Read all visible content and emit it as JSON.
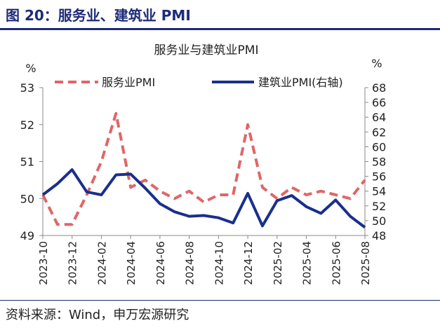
{
  "figure": {
    "title": "图 20：服务业、建筑业 PMI",
    "source": "资料来源：Wind，申万宏源研究"
  },
  "colors": {
    "header_blue": "#1d2b78",
    "services_line": "#e06666",
    "construction_line": "#1a2f8c"
  },
  "chart_data": {
    "type": "line",
    "title": "服务业与建筑业PMI",
    "left_unit": "%",
    "right_unit": "%",
    "x": [
      "2023-10",
      "2023-11",
      "2023-12",
      "2024-01",
      "2024-02",
      "2024-03",
      "2024-04",
      "2024-05",
      "2024-06",
      "2024-07",
      "2024-08",
      "2024-09",
      "2024-10",
      "2024-11",
      "2024-12",
      "2025-01",
      "2025-02",
      "2025-03",
      "2025-04",
      "2025-05",
      "2025-06",
      "2025-07",
      "2025-08"
    ],
    "x_tick_labels": [
      "2023-10",
      "2023-12",
      "2024-02",
      "2024-04",
      "2024-06",
      "2024-08",
      "2024-10",
      "2024-12",
      "2025-02",
      "2025-04",
      "2025-06",
      "2025-08"
    ],
    "y_left": {
      "lim": [
        49,
        53
      ],
      "ticks": [
        "49",
        "50",
        "51",
        "52",
        "53"
      ]
    },
    "y_right": {
      "lim": [
        48,
        68
      ],
      "ticks": [
        "48",
        "50",
        "52",
        "54",
        "56",
        "58",
        "60",
        "62",
        "64",
        "66",
        "68"
      ]
    },
    "series": [
      {
        "name": "服务业PMI",
        "axis": "left",
        "style": "dashed",
        "values": [
          50.1,
          49.3,
          49.3,
          50.1,
          51.0,
          52.3,
          50.3,
          50.5,
          50.2,
          50.0,
          50.2,
          49.9,
          50.1,
          50.1,
          52.0,
          50.3,
          50.0,
          50.3,
          50.1,
          50.2,
          50.1,
          50.0,
          50.5
        ]
      },
      {
        "name": "建筑业PMI(右轴)",
        "axis": "right",
        "style": "solid",
        "values": [
          53.5,
          55.0,
          56.9,
          53.9,
          53.5,
          56.2,
          56.3,
          54.4,
          52.3,
          51.2,
          50.6,
          50.7,
          50.4,
          49.7,
          53.7,
          49.3,
          52.7,
          53.4,
          51.9,
          51.0,
          52.8,
          50.6,
          49.1
        ]
      }
    ]
  }
}
